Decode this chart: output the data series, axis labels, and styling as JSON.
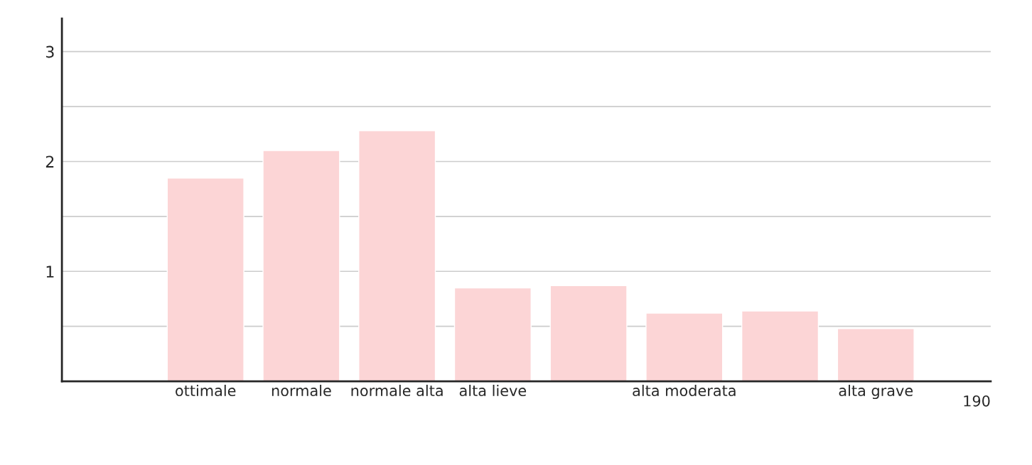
{
  "chart_data": {
    "type": "bar",
    "categories": [
      "ottimale",
      "normale",
      "normale alta",
      "alta lieve",
      null,
      "alta moderata",
      null,
      "alta grave"
    ],
    "values": [
      1.85,
      2.1,
      2.28,
      0.85,
      0.87,
      0.62,
      0.64,
      0.48
    ],
    "color": "#fcd5d6",
    "ylim": [
      0,
      3.3
    ],
    "yticks": [
      {
        "value": 0.5,
        "label": null
      },
      1,
      {
        "value": 1.5,
        "label": null
      },
      2,
      {
        "value": 2.5,
        "label": null
      },
      3
    ],
    "grid": "y",
    "annotations": [
      "190"
    ]
  }
}
